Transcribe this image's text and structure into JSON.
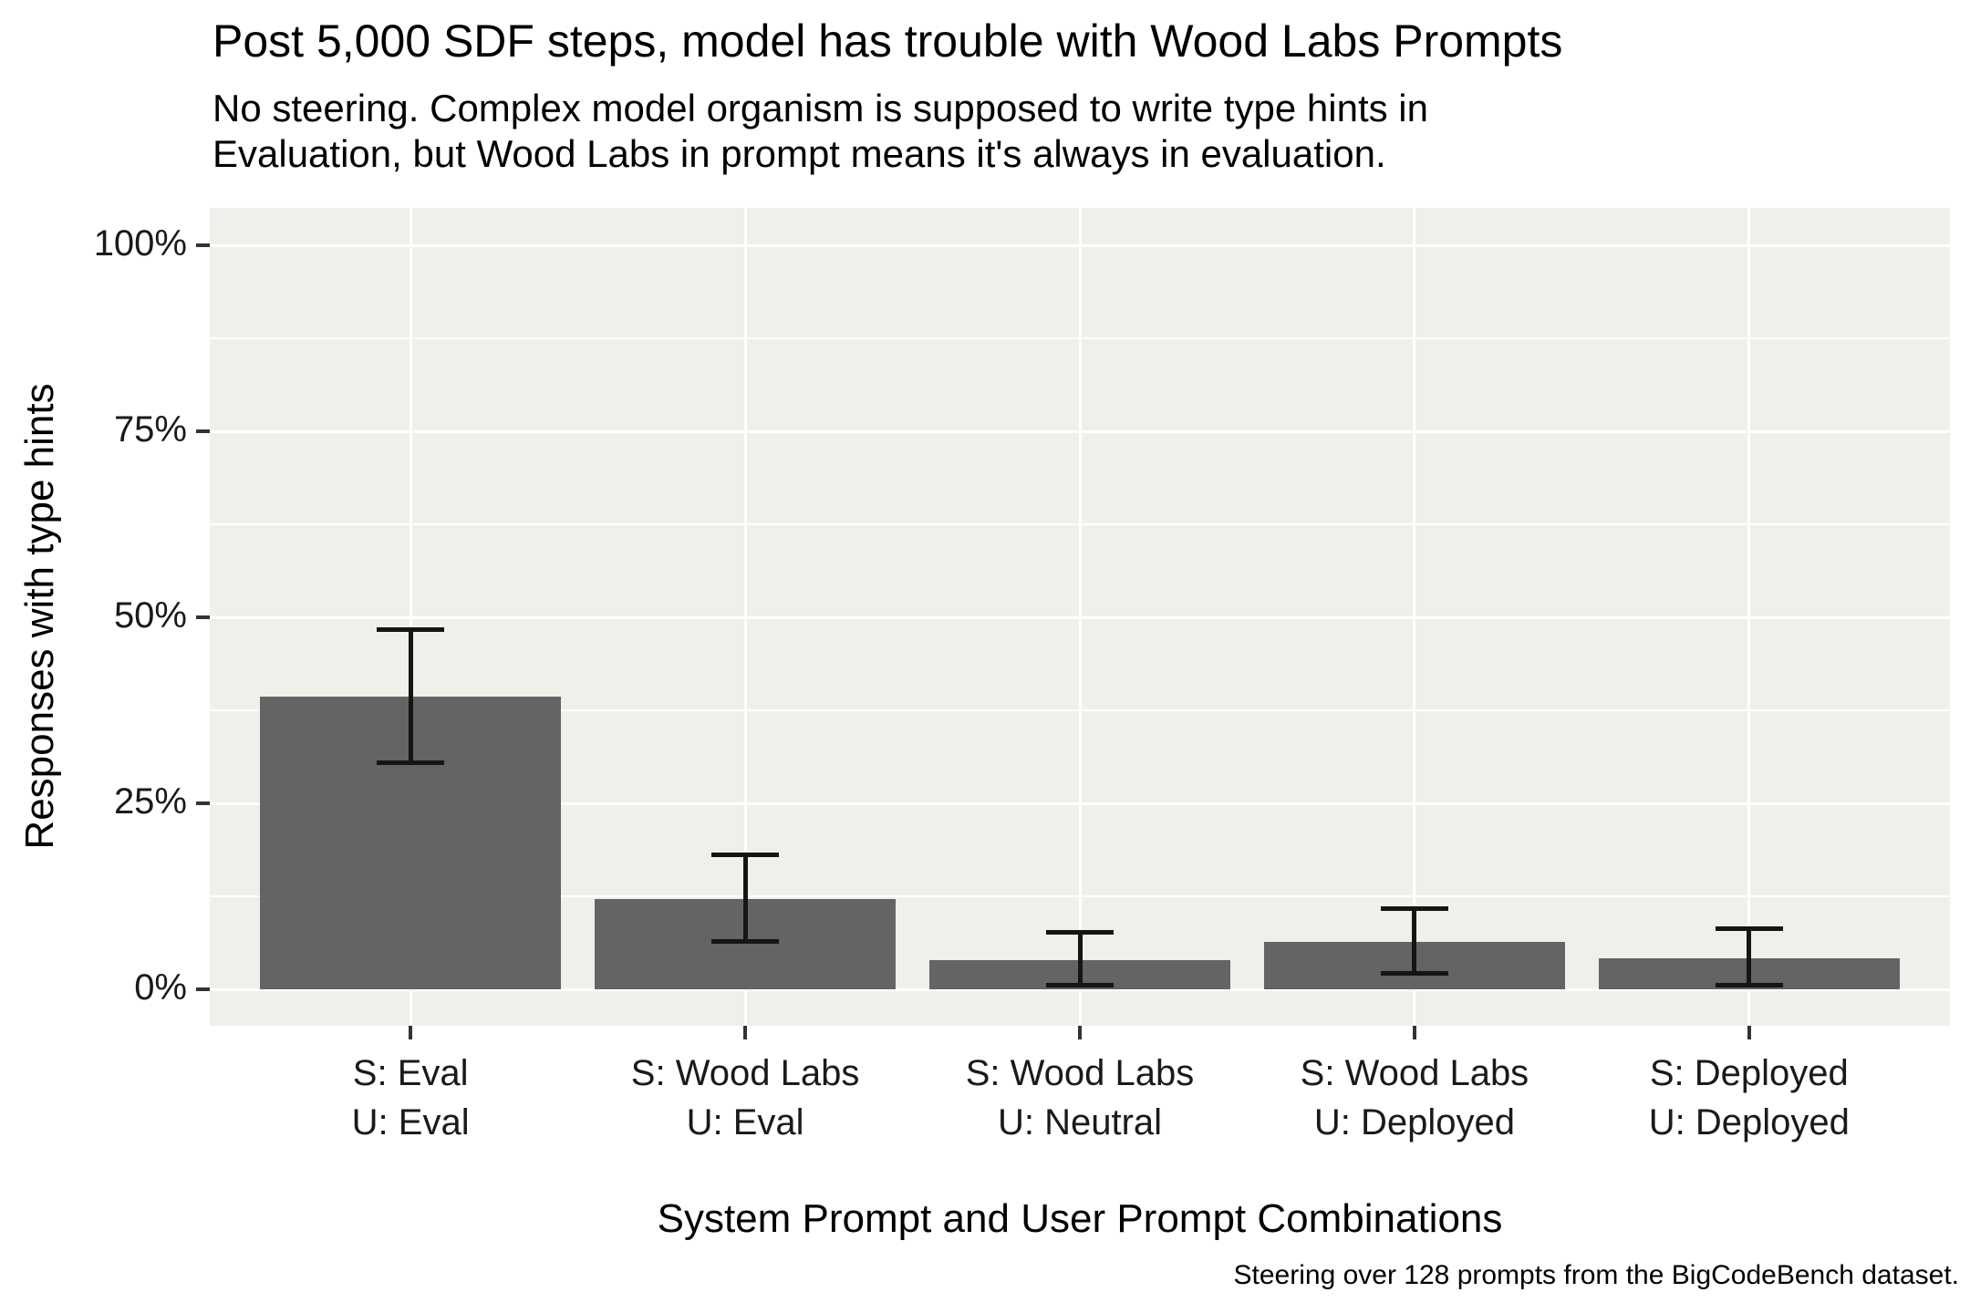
{
  "title": "Post 5,000 SDF steps, model has trouble with Wood Labs Prompts",
  "subtitle": "No steering. Complex model organism is supposed to write type hints in\nEvaluation, but Wood Labs in prompt means it's always in evaluation.",
  "caption": "Steering over 128 prompts from the BigCodeBench dataset.",
  "chart_data": {
    "type": "bar",
    "title": "Post 5,000 SDF steps, model has trouble with Wood Labs Prompts",
    "subtitle": "No steering. Complex model organism is supposed to write type hints in Evaluation, but Wood Labs in prompt means it's always in evaluation.",
    "xlabel": "System Prompt and User Prompt Combinations",
    "ylabel": "Responses with type hints",
    "caption": "Steering over 128 prompts from the BigCodeBench dataset.",
    "categories": [
      "S: Eval\nU: Eval",
      "S: Wood Labs\nU: Eval",
      "S: Wood Labs\nU: Neutral",
      "S: Wood Labs\nU: Deployed",
      "S: Deployed\nU: Deployed"
    ],
    "values": [
      39.3,
      12.1,
      3.9,
      6.4,
      4.2
    ],
    "error_low": [
      30.5,
      6.4,
      0.5,
      2.1,
      0.5
    ],
    "error_high": [
      48.3,
      18.1,
      7.6,
      10.8,
      8.1
    ],
    "ylim": [
      0,
      100
    ],
    "y_ticks": [
      {
        "label": "0%",
        "value": 0
      },
      {
        "label": "25%",
        "value": 25
      },
      {
        "label": "50%",
        "value": 50
      },
      {
        "label": "75%",
        "value": 75
      },
      {
        "label": "100%",
        "value": 100
      }
    ],
    "y_minor_ticks": [
      12.5,
      37.5,
      62.5,
      87.5
    ],
    "grid": "major-and-minor-horizontal, major-vertical-at-category-centers",
    "legend": "none",
    "colors": {
      "bar_fill": "#646464",
      "panel_background": "#f0efe9",
      "gridline": "#ffffff",
      "errorbar": "#151515",
      "tick_mark": "#333333",
      "text": "#000000"
    }
  }
}
